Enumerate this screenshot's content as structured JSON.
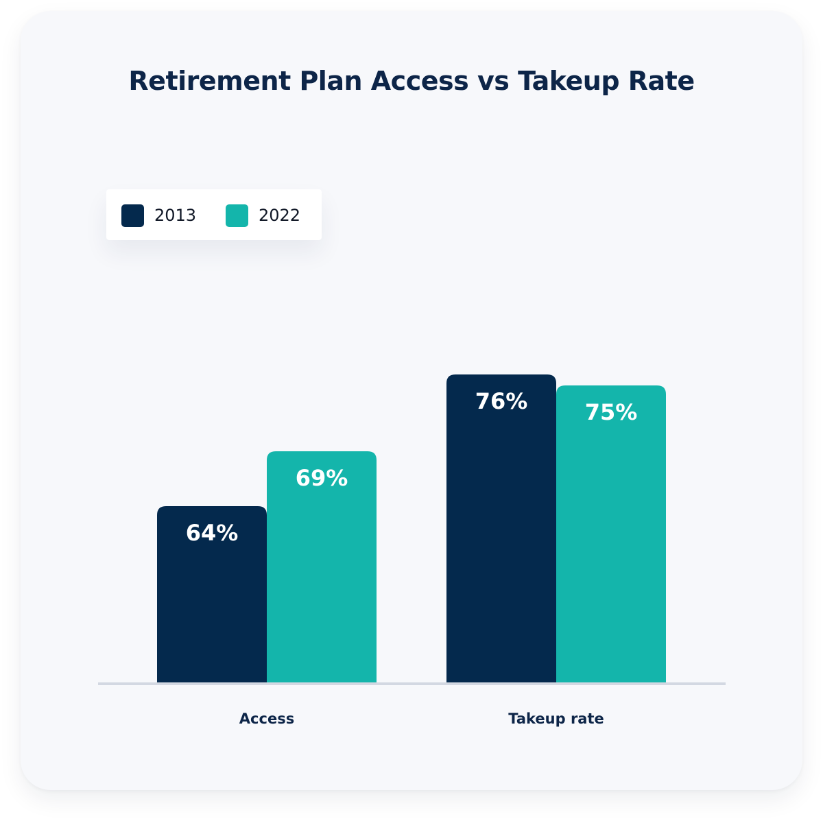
{
  "chart_data": {
    "type": "bar",
    "title": "Retirement Plan Access vs Takeup Rate",
    "categories": [
      "Access",
      "Takeup rate"
    ],
    "series": [
      {
        "name": "2013",
        "values": [
          64,
          76
        ],
        "labels": [
          "64%",
          "76%"
        ],
        "color": "#04294d"
      },
      {
        "name": "2022",
        "values": [
          69,
          75
        ],
        "labels": [
          "69%",
          "75%"
        ],
        "color": "#14b5ab"
      }
    ],
    "ylim": [
      0,
      100
    ],
    "legend_position": "top-left",
    "grid": false
  }
}
